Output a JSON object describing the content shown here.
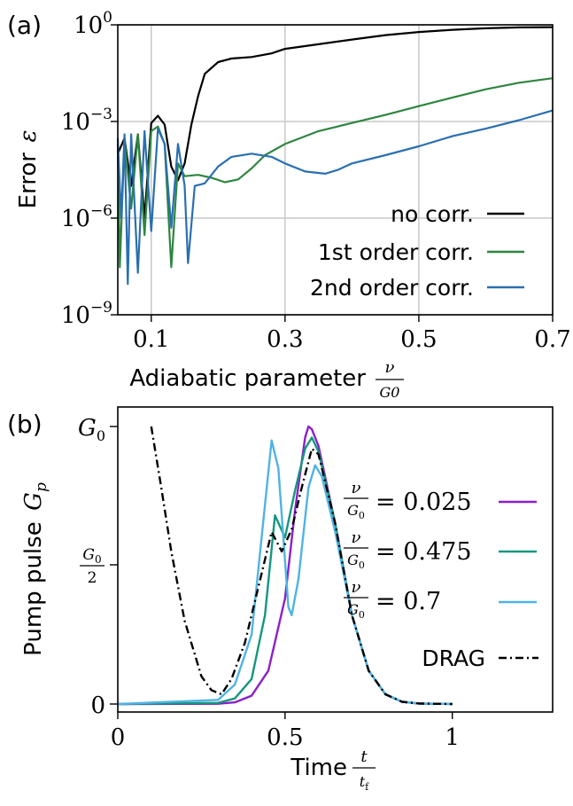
{
  "chart_data": [
    {
      "panel_label": "(a)",
      "type": "line",
      "xlabel": "Adiabatic parameter",
      "xlabel_fraction": {
        "num": "ν",
        "den": "G0"
      },
      "ylabel": "Error",
      "ylabel_symbol": "ε",
      "xlim": [
        0.05,
        0.7
      ],
      "ylim": [
        1e-09,
        1
      ],
      "yscale": "log",
      "grid": true,
      "legend_position": "lower-right",
      "xticks": [
        {
          "value": 0.1,
          "label": "0.1"
        },
        {
          "value": 0.3,
          "label": "0.3"
        },
        {
          "value": 0.5,
          "label": "0.5"
        },
        {
          "value": 0.7,
          "label": "0.7"
        }
      ],
      "yticks": [
        {
          "value": 1,
          "base": "10",
          "exp": "0"
        },
        {
          "value": 0.001,
          "base": "10",
          "exp": "−3"
        },
        {
          "value": 1e-06,
          "base": "10",
          "exp": "−6"
        },
        {
          "value": 1e-09,
          "base": "10",
          "exp": "−9"
        }
      ],
      "series": [
        {
          "name": "no corr.",
          "color": "#000000",
          "points": [
            [
              0.05,
              0.0001
            ],
            [
              0.06,
              0.0003
            ],
            [
              0.07,
              1e-05
            ],
            [
              0.08,
              0.0004
            ],
            [
              0.09,
              1e-06
            ],
            [
              0.1,
              0.0009
            ],
            [
              0.11,
              0.0015
            ],
            [
              0.12,
              0.0008
            ],
            [
              0.13,
              4e-05
            ],
            [
              0.14,
              1.5e-05
            ],
            [
              0.15,
              5e-05
            ],
            [
              0.16,
              0.0008
            ],
            [
              0.17,
              0.006
            ],
            [
              0.18,
              0.03
            ],
            [
              0.2,
              0.07
            ],
            [
              0.22,
              0.09
            ],
            [
              0.25,
              0.1
            ],
            [
              0.28,
              0.13
            ],
            [
              0.3,
              0.18
            ],
            [
              0.35,
              0.25
            ],
            [
              0.4,
              0.35
            ],
            [
              0.45,
              0.48
            ],
            [
              0.5,
              0.6
            ],
            [
              0.55,
              0.7
            ],
            [
              0.6,
              0.78
            ],
            [
              0.65,
              0.83
            ],
            [
              0.7,
              0.85
            ]
          ]
        },
        {
          "name": "1st order corr.",
          "color": "#2e8540",
          "points": [
            [
              0.05,
              0.0002
            ],
            [
              0.053,
              3e-08
            ],
            [
              0.06,
              0.0003
            ],
            [
              0.07,
              2e-06
            ],
            [
              0.08,
              0.0004
            ],
            [
              0.09,
              3e-07
            ],
            [
              0.1,
              0.0005
            ],
            [
              0.11,
              0.0007
            ],
            [
              0.12,
              0.0002
            ],
            [
              0.13,
              3e-08
            ],
            [
              0.14,
              5e-05
            ],
            [
              0.15,
              2e-05
            ],
            [
              0.17,
              2.2e-05
            ],
            [
              0.19,
              1.8e-05
            ],
            [
              0.21,
              1.3e-05
            ],
            [
              0.23,
              1.6e-05
            ],
            [
              0.25,
              3.5e-05
            ],
            [
              0.27,
              9e-05
            ],
            [
              0.3,
              0.0002
            ],
            [
              0.35,
              0.0005
            ],
            [
              0.4,
              0.0009
            ],
            [
              0.45,
              0.0016
            ],
            [
              0.5,
              0.003
            ],
            [
              0.55,
              0.0055
            ],
            [
              0.6,
              0.01
            ],
            [
              0.65,
              0.016
            ],
            [
              0.7,
              0.022
            ]
          ]
        },
        {
          "name": "2nd order corr.",
          "color": "#2a6fb0",
          "points": [
            [
              0.05,
              0.0003
            ],
            [
              0.055,
              1e-06
            ],
            [
              0.06,
              0.0004
            ],
            [
              0.065,
              9e-09
            ],
            [
              0.07,
              0.0004
            ],
            [
              0.08,
              2e-08
            ],
            [
              0.09,
              0.0005
            ],
            [
              0.1,
              4e-07
            ],
            [
              0.11,
              0.0006
            ],
            [
              0.12,
              0.0002
            ],
            [
              0.13,
              5e-07
            ],
            [
              0.14,
              0.0002
            ],
            [
              0.15,
              1e-05
            ],
            [
              0.155,
              4e-08
            ],
            [
              0.165,
              1e-05
            ],
            [
              0.18,
              1.2e-05
            ],
            [
              0.2,
              4e-05
            ],
            [
              0.22,
              8e-05
            ],
            [
              0.25,
              0.0001
            ],
            [
              0.28,
              8e-05
            ],
            [
              0.3,
              5e-05
            ],
            [
              0.33,
              2.8e-05
            ],
            [
              0.36,
              2.4e-05
            ],
            [
              0.38,
              3.2e-05
            ],
            [
              0.4,
              5e-05
            ],
            [
              0.45,
              9e-05
            ],
            [
              0.5,
              0.00017
            ],
            [
              0.55,
              0.00035
            ],
            [
              0.6,
              0.0006
            ],
            [
              0.65,
              0.0011
            ],
            [
              0.7,
              0.0022
            ]
          ]
        }
      ]
    },
    {
      "panel_label": "(b)",
      "type": "line",
      "xlabel": "Time",
      "xlabel_fraction": {
        "num": "t",
        "den": "tf"
      },
      "ylabel": "Pump pulse",
      "ylabel_symbol": "Gp",
      "xlim": [
        0,
        1.3
      ],
      "ylim": [
        0,
        1
      ],
      "grid": false,
      "legend_position": "right",
      "xticks": [
        {
          "value": 0,
          "label": "0"
        },
        {
          "value": 0.5,
          "label": "0.5"
        },
        {
          "value": 1,
          "label": "1"
        }
      ],
      "yticks": [
        {
          "value": 0,
          "label": "0"
        },
        {
          "value": 0.5,
          "label": "G0/2"
        },
        {
          "value": 1,
          "label": "G0"
        }
      ],
      "series": [
        {
          "legend_num": "ν",
          "legend_den": "G0",
          "legend_value": "= 0.025",
          "color": "#8b1fc9",
          "dash": "",
          "points": [
            [
              0,
              0
            ],
            [
              0.3,
              0.001
            ],
            [
              0.35,
              0.006
            ],
            [
              0.4,
              0.03
            ],
            [
              0.45,
              0.12
            ],
            [
              0.5,
              0.38
            ],
            [
              0.53,
              0.7
            ],
            [
              0.56,
              0.96
            ],
            [
              0.57,
              1
            ],
            [
              0.58,
              0.99
            ],
            [
              0.6,
              0.93
            ],
            [
              0.65,
              0.65
            ],
            [
              0.7,
              0.32
            ],
            [
              0.75,
              0.12
            ],
            [
              0.8,
              0.035
            ],
            [
              0.85,
              0.008
            ],
            [
              0.9,
              0.002
            ],
            [
              1,
              0
            ]
          ]
        },
        {
          "legend_num": "ν",
          "legend_den": "G0",
          "legend_value": "= 0.475",
          "color": "#14967f",
          "dash": "",
          "points": [
            [
              0,
              0
            ],
            [
              0.3,
              0.004
            ],
            [
              0.35,
              0.02
            ],
            [
              0.4,
              0.09
            ],
            [
              0.44,
              0.32
            ],
            [
              0.47,
              0.68
            ],
            [
              0.5,
              0.6
            ],
            [
              0.53,
              0.77
            ],
            [
              0.56,
              0.92
            ],
            [
              0.58,
              0.96
            ],
            [
              0.6,
              0.91
            ],
            [
              0.65,
              0.65
            ],
            [
              0.7,
              0.32
            ],
            [
              0.75,
              0.12
            ],
            [
              0.8,
              0.035
            ],
            [
              0.85,
              0.008
            ],
            [
              0.9,
              0.002
            ],
            [
              1,
              0
            ]
          ]
        },
        {
          "legend_num": "ν",
          "legend_den": "G0",
          "legend_value": "= 0.7",
          "color": "#4fb3e3",
          "dash": "",
          "points": [
            [
              0,
              0
            ],
            [
              0.3,
              0.015
            ],
            [
              0.35,
              0.07
            ],
            [
              0.4,
              0.25
            ],
            [
              0.43,
              0.6
            ],
            [
              0.46,
              0.95
            ],
            [
              0.48,
              0.85
            ],
            [
              0.51,
              0.35
            ],
            [
              0.52,
              0.32
            ],
            [
              0.54,
              0.45
            ],
            [
              0.57,
              0.78
            ],
            [
              0.59,
              0.86
            ],
            [
              0.61,
              0.82
            ],
            [
              0.65,
              0.62
            ],
            [
              0.7,
              0.32
            ],
            [
              0.75,
              0.12
            ],
            [
              0.8,
              0.035
            ],
            [
              0.85,
              0.008
            ],
            [
              0.9,
              0.002
            ],
            [
              1,
              0
            ]
          ]
        },
        {
          "name": "DRAG",
          "color": "#000000",
          "dash": "9 4 2 4",
          "points": [
            [
              0.1,
              1
            ],
            [
              0.13,
              0.78
            ],
            [
              0.16,
              0.55
            ],
            [
              0.2,
              0.3
            ],
            [
              0.25,
              0.1
            ],
            [
              0.28,
              0.05
            ],
            [
              0.31,
              0.035
            ],
            [
              0.34,
              0.09
            ],
            [
              0.38,
              0.22
            ],
            [
              0.42,
              0.42
            ],
            [
              0.46,
              0.62
            ],
            [
              0.49,
              0.55
            ],
            [
              0.52,
              0.63
            ],
            [
              0.55,
              0.78
            ],
            [
              0.58,
              0.92
            ],
            [
              0.6,
              0.9
            ],
            [
              0.65,
              0.65
            ],
            [
              0.7,
              0.32
            ],
            [
              0.75,
              0.12
            ],
            [
              0.8,
              0.035
            ],
            [
              0.85,
              0.008
            ],
            [
              0.9,
              0.002
            ],
            [
              1,
              0
            ]
          ]
        }
      ]
    }
  ]
}
